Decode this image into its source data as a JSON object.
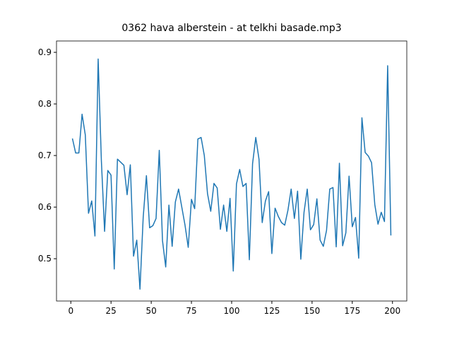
{
  "chart_data": {
    "type": "line",
    "title": "0362 hava alberstein -  at telkhi basade.mp3",
    "x": [
      1,
      3,
      5,
      7,
      9,
      11,
      13,
      15,
      17,
      19,
      21,
      23,
      25,
      27,
      29,
      31,
      33,
      35,
      37,
      39,
      41,
      43,
      45,
      47,
      49,
      51,
      53,
      55,
      57,
      59,
      61,
      63,
      65,
      67,
      69,
      71,
      73,
      75,
      77,
      79,
      81,
      83,
      85,
      87,
      89,
      91,
      93,
      95,
      97,
      99,
      101,
      103,
      105,
      107,
      109,
      111,
      113,
      115,
      117,
      119,
      121,
      123,
      125,
      127,
      129,
      131,
      133,
      135,
      137,
      139,
      141,
      143,
      145,
      147,
      149,
      151,
      153,
      155,
      157,
      159,
      161,
      163,
      165,
      167,
      169,
      171,
      173,
      175,
      177,
      179,
      181,
      183,
      185,
      187,
      189,
      191,
      193,
      195,
      197,
      199
    ],
    "series": [
      {
        "color": "#1f77b4",
        "values": [
          0.733,
          0.705,
          0.705,
          0.78,
          0.74,
          0.588,
          0.612,
          0.544,
          0.887,
          0.69,
          0.553,
          0.671,
          0.662,
          0.48,
          0.693,
          0.687,
          0.681,
          0.624,
          0.682,
          0.505,
          0.536,
          0.441,
          0.58,
          0.661,
          0.56,
          0.564,
          0.578,
          0.71,
          0.535,
          0.484,
          0.604,
          0.524,
          0.61,
          0.635,
          0.6,
          0.565,
          0.522,
          0.615,
          0.597,
          0.732,
          0.735,
          0.7,
          0.626,
          0.592,
          0.646,
          0.637,
          0.557,
          0.604,
          0.553,
          0.617,
          0.476,
          0.645,
          0.673,
          0.64,
          0.646,
          0.498,
          0.684,
          0.735,
          0.693,
          0.57,
          0.612,
          0.63,
          0.51,
          0.598,
          0.582,
          0.57,
          0.565,
          0.594,
          0.635,
          0.578,
          0.631,
          0.499,
          0.59,
          0.635,
          0.556,
          0.566,
          0.616,
          0.536,
          0.524,
          0.555,
          0.635,
          0.638,
          0.523,
          0.685,
          0.525,
          0.55,
          0.66,
          0.562,
          0.58,
          0.501,
          0.773,
          0.706,
          0.699,
          0.686,
          0.605,
          0.567,
          0.59,
          0.572,
          0.874,
          0.545
        ]
      }
    ],
    "xlim": [
      -8.9,
      208.9
    ],
    "ylim": [
      0.418,
      0.922
    ],
    "xticks": [
      0,
      25,
      50,
      75,
      100,
      125,
      150,
      175,
      200
    ],
    "yticks": [
      0.5,
      0.6,
      0.7,
      0.8,
      0.9
    ]
  }
}
